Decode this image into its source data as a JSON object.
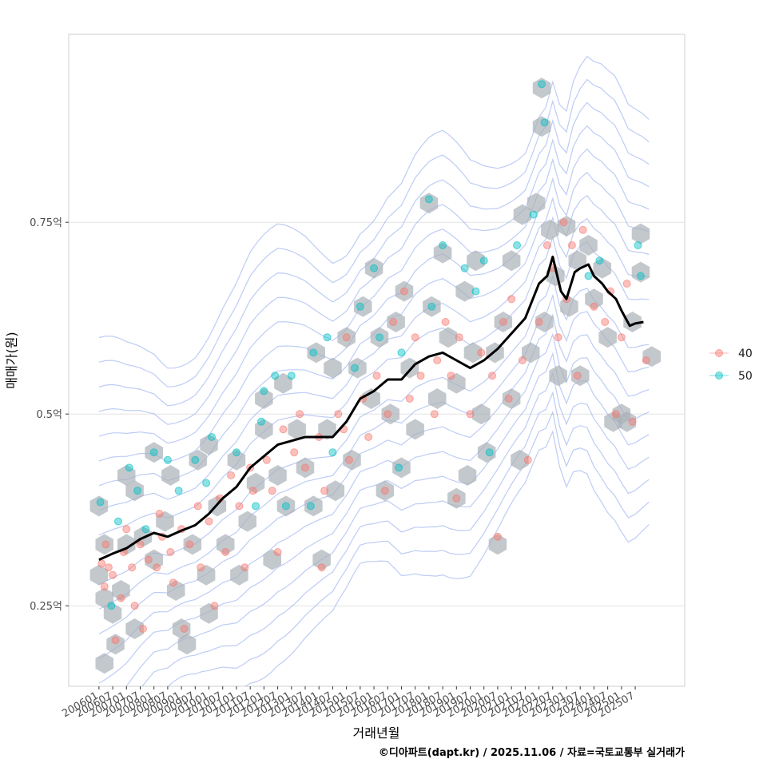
{
  "chart_data": {
    "type": "scatter",
    "title": "",
    "xlabel": "거래년월",
    "ylabel": "매매가(원)",
    "caption": "©디아파트(dapt.kr) / 2025.11.06 / 자료=국토교통부 실거래가",
    "x_tick_labels": [
      "200601",
      "200607",
      "200701",
      "200707",
      "200801",
      "200807",
      "200901",
      "200907",
      "201001",
      "201007",
      "201101",
      "201107",
      "201201",
      "201207",
      "201301",
      "201307",
      "201401",
      "201407",
      "201501",
      "201507",
      "201601",
      "201607",
      "201701",
      "201707",
      "201801",
      "201807",
      "201901",
      "201907",
      "202001",
      "202007",
      "202101",
      "202107",
      "202201",
      "202207",
      "202301",
      "202307",
      "202401",
      "202407",
      "202501",
      "202507"
    ],
    "y_ticks": [
      {
        "value": 0.25,
        "label": "0.25억"
      },
      {
        "value": 0.5,
        "label": "0.5억"
      },
      {
        "value": 0.75,
        "label": "0.75억"
      }
    ],
    "xlim": [
      2004.9,
      2027.3
    ],
    "ylim": [
      0.145,
      0.995
    ],
    "grid": true,
    "legend_position": "right",
    "series": [
      {
        "name": "40",
        "color": "#F8766D"
      },
      {
        "name": "50",
        "color": "#00BFC4"
      }
    ],
    "trend_color": "#000000",
    "hex_color": "#A9B0B8",
    "contour_color": "#6F8FE8",
    "trend": {
      "x": [
        2006.0,
        2006.5,
        2007.0,
        2007.5,
        2008.0,
        2008.5,
        2009.0,
        2009.5,
        2010.0,
        2010.5,
        2011.0,
        2011.5,
        2012.0,
        2012.5,
        2013.0,
        2013.5,
        2014.0,
        2014.5,
        2015.0,
        2015.5,
        2016.0,
        2016.5,
        2017.0,
        2017.5,
        2018.0,
        2018.5,
        2019.0,
        2019.5,
        2020.0,
        2020.5,
        2021.0,
        2021.5,
        2022.0,
        2022.3,
        2022.5,
        2022.8,
        2023.0,
        2023.3,
        2023.5,
        2023.8,
        2024.0,
        2024.3,
        2024.5,
        2024.8,
        2025.0,
        2025.3,
        2025.5,
        2025.8
      ],
      "y": [
        0.31,
        0.318,
        0.325,
        0.337,
        0.345,
        0.34,
        0.348,
        0.355,
        0.37,
        0.39,
        0.405,
        0.43,
        0.445,
        0.46,
        0.465,
        0.47,
        0.47,
        0.47,
        0.49,
        0.52,
        0.53,
        0.545,
        0.545,
        0.565,
        0.575,
        0.58,
        0.57,
        0.56,
        0.57,
        0.585,
        0.605,
        0.625,
        0.67,
        0.68,
        0.705,
        0.66,
        0.65,
        0.685,
        0.69,
        0.695,
        0.68,
        0.67,
        0.66,
        0.65,
        0.635,
        0.615,
        0.618,
        0.62
      ]
    },
    "points": [
      {
        "x": 2006.05,
        "y": 0.385,
        "s": "50"
      },
      {
        "x": 2006.1,
        "y": 0.305,
        "s": "40"
      },
      {
        "x": 2006.2,
        "y": 0.275,
        "s": "40"
      },
      {
        "x": 2006.25,
        "y": 0.33,
        "s": "40"
      },
      {
        "x": 2006.35,
        "y": 0.3,
        "s": "40"
      },
      {
        "x": 2006.45,
        "y": 0.25,
        "s": "50"
      },
      {
        "x": 2006.5,
        "y": 0.29,
        "s": "40"
      },
      {
        "x": 2006.6,
        "y": 0.205,
        "s": "40"
      },
      {
        "x": 2006.7,
        "y": 0.36,
        "s": "50"
      },
      {
        "x": 2006.8,
        "y": 0.26,
        "s": "40"
      },
      {
        "x": 2006.9,
        "y": 0.32,
        "s": "40"
      },
      {
        "x": 2007.0,
        "y": 0.35,
        "s": "40"
      },
      {
        "x": 2007.1,
        "y": 0.43,
        "s": "50"
      },
      {
        "x": 2007.2,
        "y": 0.3,
        "s": "40"
      },
      {
        "x": 2007.3,
        "y": 0.25,
        "s": "40"
      },
      {
        "x": 2007.4,
        "y": 0.4,
        "s": "50"
      },
      {
        "x": 2007.5,
        "y": 0.33,
        "s": "40"
      },
      {
        "x": 2007.6,
        "y": 0.22,
        "s": "40"
      },
      {
        "x": 2007.7,
        "y": 0.35,
        "s": "50"
      },
      {
        "x": 2007.8,
        "y": 0.31,
        "s": "40"
      },
      {
        "x": 2008.0,
        "y": 0.45,
        "s": "50"
      },
      {
        "x": 2008.1,
        "y": 0.3,
        "s": "40"
      },
      {
        "x": 2008.2,
        "y": 0.37,
        "s": "40"
      },
      {
        "x": 2008.3,
        "y": 0.34,
        "s": "40"
      },
      {
        "x": 2008.5,
        "y": 0.44,
        "s": "50"
      },
      {
        "x": 2008.6,
        "y": 0.32,
        "s": "40"
      },
      {
        "x": 2008.7,
        "y": 0.28,
        "s": "40"
      },
      {
        "x": 2008.9,
        "y": 0.4,
        "s": "50"
      },
      {
        "x": 2009.0,
        "y": 0.35,
        "s": "40"
      },
      {
        "x": 2009.1,
        "y": 0.22,
        "s": "40"
      },
      {
        "x": 2009.3,
        "y": 0.33,
        "s": "40"
      },
      {
        "x": 2009.5,
        "y": 0.44,
        "s": "50"
      },
      {
        "x": 2009.6,
        "y": 0.38,
        "s": "40"
      },
      {
        "x": 2009.7,
        "y": 0.3,
        "s": "40"
      },
      {
        "x": 2009.9,
        "y": 0.41,
        "s": "50"
      },
      {
        "x": 2010.0,
        "y": 0.36,
        "s": "40"
      },
      {
        "x": 2010.1,
        "y": 0.47,
        "s": "50"
      },
      {
        "x": 2010.2,
        "y": 0.25,
        "s": "40"
      },
      {
        "x": 2010.4,
        "y": 0.39,
        "s": "40"
      },
      {
        "x": 2010.6,
        "y": 0.32,
        "s": "40"
      },
      {
        "x": 2010.8,
        "y": 0.42,
        "s": "40"
      },
      {
        "x": 2011.0,
        "y": 0.45,
        "s": "50"
      },
      {
        "x": 2011.1,
        "y": 0.38,
        "s": "40"
      },
      {
        "x": 2011.3,
        "y": 0.3,
        "s": "40"
      },
      {
        "x": 2011.5,
        "y": 0.43,
        "s": "40"
      },
      {
        "x": 2011.6,
        "y": 0.4,
        "s": "40"
      },
      {
        "x": 2011.7,
        "y": 0.38,
        "s": "50"
      },
      {
        "x": 2011.9,
        "y": 0.49,
        "s": "50"
      },
      {
        "x": 2012.0,
        "y": 0.53,
        "s": "50"
      },
      {
        "x": 2012.1,
        "y": 0.44,
        "s": "40"
      },
      {
        "x": 2012.3,
        "y": 0.4,
        "s": "40"
      },
      {
        "x": 2012.4,
        "y": 0.55,
        "s": "50"
      },
      {
        "x": 2012.5,
        "y": 0.32,
        "s": "40"
      },
      {
        "x": 2012.7,
        "y": 0.48,
        "s": "40"
      },
      {
        "x": 2012.8,
        "y": 0.38,
        "s": "50"
      },
      {
        "x": 2013.0,
        "y": 0.55,
        "s": "50"
      },
      {
        "x": 2013.1,
        "y": 0.45,
        "s": "40"
      },
      {
        "x": 2013.3,
        "y": 0.5,
        "s": "40"
      },
      {
        "x": 2013.5,
        "y": 0.43,
        "s": "40"
      },
      {
        "x": 2013.7,
        "y": 0.38,
        "s": "50"
      },
      {
        "x": 2013.8,
        "y": 0.58,
        "s": "50"
      },
      {
        "x": 2014.0,
        "y": 0.47,
        "s": "40"
      },
      {
        "x": 2014.1,
        "y": 0.3,
        "s": "40"
      },
      {
        "x": 2014.2,
        "y": 0.4,
        "s": "40"
      },
      {
        "x": 2014.3,
        "y": 0.6,
        "s": "50"
      },
      {
        "x": 2014.5,
        "y": 0.45,
        "s": "50"
      },
      {
        "x": 2014.7,
        "y": 0.5,
        "s": "40"
      },
      {
        "x": 2014.9,
        "y": 0.48,
        "s": "40"
      },
      {
        "x": 2015.0,
        "y": 0.6,
        "s": "40"
      },
      {
        "x": 2015.1,
        "y": 0.44,
        "s": "40"
      },
      {
        "x": 2015.3,
        "y": 0.56,
        "s": "50"
      },
      {
        "x": 2015.5,
        "y": 0.64,
        "s": "50"
      },
      {
        "x": 2015.6,
        "y": 0.52,
        "s": "40"
      },
      {
        "x": 2015.8,
        "y": 0.47,
        "s": "40"
      },
      {
        "x": 2016.0,
        "y": 0.69,
        "s": "50"
      },
      {
        "x": 2016.1,
        "y": 0.55,
        "s": "40"
      },
      {
        "x": 2016.2,
        "y": 0.6,
        "s": "50"
      },
      {
        "x": 2016.4,
        "y": 0.4,
        "s": "40"
      },
      {
        "x": 2016.5,
        "y": 0.5,
        "s": "40"
      },
      {
        "x": 2016.7,
        "y": 0.62,
        "s": "40"
      },
      {
        "x": 2016.9,
        "y": 0.43,
        "s": "50"
      },
      {
        "x": 2017.0,
        "y": 0.58,
        "s": "50"
      },
      {
        "x": 2017.1,
        "y": 0.66,
        "s": "40"
      },
      {
        "x": 2017.3,
        "y": 0.52,
        "s": "40"
      },
      {
        "x": 2017.5,
        "y": 0.6,
        "s": "40"
      },
      {
        "x": 2017.7,
        "y": 0.55,
        "s": "40"
      },
      {
        "x": 2018.0,
        "y": 0.78,
        "s": "50"
      },
      {
        "x": 2018.1,
        "y": 0.64,
        "s": "50"
      },
      {
        "x": 2018.2,
        "y": 0.5,
        "s": "40"
      },
      {
        "x": 2018.3,
        "y": 0.57,
        "s": "40"
      },
      {
        "x": 2018.5,
        "y": 0.72,
        "s": "50"
      },
      {
        "x": 2018.6,
        "y": 0.62,
        "s": "40"
      },
      {
        "x": 2018.8,
        "y": 0.55,
        "s": "40"
      },
      {
        "x": 2019.0,
        "y": 0.39,
        "s": "40"
      },
      {
        "x": 2019.1,
        "y": 0.6,
        "s": "40"
      },
      {
        "x": 2019.3,
        "y": 0.69,
        "s": "50"
      },
      {
        "x": 2019.5,
        "y": 0.5,
        "s": "40"
      },
      {
        "x": 2019.7,
        "y": 0.66,
        "s": "50"
      },
      {
        "x": 2019.9,
        "y": 0.58,
        "s": "40"
      },
      {
        "x": 2020.0,
        "y": 0.7,
        "s": "50"
      },
      {
        "x": 2020.2,
        "y": 0.45,
        "s": "50"
      },
      {
        "x": 2020.3,
        "y": 0.55,
        "s": "40"
      },
      {
        "x": 2020.5,
        "y": 0.34,
        "s": "40"
      },
      {
        "x": 2020.7,
        "y": 0.62,
        "s": "40"
      },
      {
        "x": 2020.9,
        "y": 0.52,
        "s": "40"
      },
      {
        "x": 2021.0,
        "y": 0.65,
        "s": "40"
      },
      {
        "x": 2021.2,
        "y": 0.72,
        "s": "50"
      },
      {
        "x": 2021.4,
        "y": 0.57,
        "s": "40"
      },
      {
        "x": 2021.6,
        "y": 0.44,
        "s": "40"
      },
      {
        "x": 2021.8,
        "y": 0.76,
        "s": "50"
      },
      {
        "x": 2022.0,
        "y": 0.62,
        "s": "40"
      },
      {
        "x": 2022.1,
        "y": 0.93,
        "s": "50"
      },
      {
        "x": 2022.2,
        "y": 0.88,
        "s": "50"
      },
      {
        "x": 2022.3,
        "y": 0.72,
        "s": "40"
      },
      {
        "x": 2022.5,
        "y": 0.69,
        "s": "40"
      },
      {
        "x": 2022.7,
        "y": 0.6,
        "s": "40"
      },
      {
        "x": 2022.9,
        "y": 0.75,
        "s": "40"
      },
      {
        "x": 2023.0,
        "y": 0.65,
        "s": "40"
      },
      {
        "x": 2023.2,
        "y": 0.72,
        "s": "40"
      },
      {
        "x": 2023.4,
        "y": 0.55,
        "s": "40"
      },
      {
        "x": 2023.6,
        "y": 0.74,
        "s": "40"
      },
      {
        "x": 2023.8,
        "y": 0.68,
        "s": "50"
      },
      {
        "x": 2024.0,
        "y": 0.64,
        "s": "40"
      },
      {
        "x": 2024.2,
        "y": 0.7,
        "s": "50"
      },
      {
        "x": 2024.4,
        "y": 0.62,
        "s": "40"
      },
      {
        "x": 2024.6,
        "y": 0.66,
        "s": "40"
      },
      {
        "x": 2024.8,
        "y": 0.5,
        "s": "40"
      },
      {
        "x": 2025.0,
        "y": 0.6,
        "s": "40"
      },
      {
        "x": 2025.2,
        "y": 0.67,
        "s": "40"
      },
      {
        "x": 2025.4,
        "y": 0.49,
        "s": "40"
      },
      {
        "x": 2025.6,
        "y": 0.72,
        "s": "50"
      },
      {
        "x": 2025.7,
        "y": 0.68,
        "s": "50"
      },
      {
        "x": 2025.9,
        "y": 0.57,
        "s": "40"
      }
    ],
    "hexes": [
      {
        "x": 2006.0,
        "y": 0.38
      },
      {
        "x": 2006.0,
        "y": 0.29
      },
      {
        "x": 2006.2,
        "y": 0.33
      },
      {
        "x": 2006.2,
        "y": 0.26
      },
      {
        "x": 2006.2,
        "y": 0.175
      },
      {
        "x": 2006.5,
        "y": 0.24
      },
      {
        "x": 2006.6,
        "y": 0.2
      },
      {
        "x": 2006.8,
        "y": 0.27
      },
      {
        "x": 2007.0,
        "y": 0.33
      },
      {
        "x": 2007.0,
        "y": 0.42
      },
      {
        "x": 2007.3,
        "y": 0.4
      },
      {
        "x": 2007.3,
        "y": 0.22
      },
      {
        "x": 2007.6,
        "y": 0.34
      },
      {
        "x": 2008.0,
        "y": 0.45
      },
      {
        "x": 2008.0,
        "y": 0.31
      },
      {
        "x": 2008.4,
        "y": 0.36
      },
      {
        "x": 2008.6,
        "y": 0.42
      },
      {
        "x": 2008.8,
        "y": 0.27
      },
      {
        "x": 2009.0,
        "y": 0.22
      },
      {
        "x": 2009.2,
        "y": 0.2
      },
      {
        "x": 2009.4,
        "y": 0.33
      },
      {
        "x": 2009.6,
        "y": 0.44
      },
      {
        "x": 2009.9,
        "y": 0.29
      },
      {
        "x": 2010.0,
        "y": 0.46
      },
      {
        "x": 2010.0,
        "y": 0.24
      },
      {
        "x": 2010.3,
        "y": 0.38
      },
      {
        "x": 2010.6,
        "y": 0.33
      },
      {
        "x": 2011.0,
        "y": 0.44
      },
      {
        "x": 2011.1,
        "y": 0.29
      },
      {
        "x": 2011.4,
        "y": 0.36
      },
      {
        "x": 2011.7,
        "y": 0.41
      },
      {
        "x": 2012.0,
        "y": 0.52
      },
      {
        "x": 2012.0,
        "y": 0.48
      },
      {
        "x": 2012.3,
        "y": 0.31
      },
      {
        "x": 2012.5,
        "y": 0.42
      },
      {
        "x": 2012.7,
        "y": 0.54
      },
      {
        "x": 2012.8,
        "y": 0.38
      },
      {
        "x": 2013.2,
        "y": 0.48
      },
      {
        "x": 2013.5,
        "y": 0.43
      },
      {
        "x": 2013.8,
        "y": 0.38
      },
      {
        "x": 2013.9,
        "y": 0.58
      },
      {
        "x": 2014.1,
        "y": 0.31
      },
      {
        "x": 2014.3,
        "y": 0.48
      },
      {
        "x": 2014.5,
        "y": 0.56
      },
      {
        "x": 2014.6,
        "y": 0.4
      },
      {
        "x": 2015.0,
        "y": 0.6
      },
      {
        "x": 2015.2,
        "y": 0.44
      },
      {
        "x": 2015.4,
        "y": 0.56
      },
      {
        "x": 2015.6,
        "y": 0.64
      },
      {
        "x": 2015.9,
        "y": 0.52
      },
      {
        "x": 2016.0,
        "y": 0.69
      },
      {
        "x": 2016.2,
        "y": 0.6
      },
      {
        "x": 2016.4,
        "y": 0.4
      },
      {
        "x": 2016.6,
        "y": 0.5
      },
      {
        "x": 2016.8,
        "y": 0.62
      },
      {
        "x": 2017.0,
        "y": 0.43
      },
      {
        "x": 2017.1,
        "y": 0.66
      },
      {
        "x": 2017.3,
        "y": 0.56
      },
      {
        "x": 2017.5,
        "y": 0.48
      },
      {
        "x": 2018.0,
        "y": 0.775
      },
      {
        "x": 2018.1,
        "y": 0.64
      },
      {
        "x": 2018.3,
        "y": 0.52
      },
      {
        "x": 2018.5,
        "y": 0.71
      },
      {
        "x": 2018.7,
        "y": 0.6
      },
      {
        "x": 2019.0,
        "y": 0.39
      },
      {
        "x": 2019.0,
        "y": 0.54
      },
      {
        "x": 2019.3,
        "y": 0.66
      },
      {
        "x": 2019.4,
        "y": 0.42
      },
      {
        "x": 2019.6,
        "y": 0.58
      },
      {
        "x": 2019.7,
        "y": 0.7
      },
      {
        "x": 2019.9,
        "y": 0.5
      },
      {
        "x": 2020.1,
        "y": 0.45
      },
      {
        "x": 2020.4,
        "y": 0.58
      },
      {
        "x": 2020.5,
        "y": 0.33
      },
      {
        "x": 2020.7,
        "y": 0.62
      },
      {
        "x": 2021.0,
        "y": 0.52
      },
      {
        "x": 2021.0,
        "y": 0.7
      },
      {
        "x": 2021.3,
        "y": 0.44
      },
      {
        "x": 2021.4,
        "y": 0.76
      },
      {
        "x": 2021.7,
        "y": 0.58
      },
      {
        "x": 2021.9,
        "y": 0.775
      },
      {
        "x": 2022.1,
        "y": 0.925
      },
      {
        "x": 2022.1,
        "y": 0.875
      },
      {
        "x": 2022.2,
        "y": 0.62
      },
      {
        "x": 2022.4,
        "y": 0.74
      },
      {
        "x": 2022.6,
        "y": 0.68
      },
      {
        "x": 2022.7,
        "y": 0.55
      },
      {
        "x": 2023.0,
        "y": 0.745
      },
      {
        "x": 2023.1,
        "y": 0.64
      },
      {
        "x": 2023.4,
        "y": 0.7
      },
      {
        "x": 2023.5,
        "y": 0.55
      },
      {
        "x": 2023.8,
        "y": 0.72
      },
      {
        "x": 2024.0,
        "y": 0.65
      },
      {
        "x": 2024.3,
        "y": 0.69
      },
      {
        "x": 2024.5,
        "y": 0.6
      },
      {
        "x": 2024.7,
        "y": 0.49
      },
      {
        "x": 2025.0,
        "y": 0.5
      },
      {
        "x": 2025.2,
        "y": 0.49
      },
      {
        "x": 2025.4,
        "y": 0.62
      },
      {
        "x": 2025.7,
        "y": 0.735
      },
      {
        "x": 2025.7,
        "y": 0.685
      },
      {
        "x": 2026.1,
        "y": 0.575
      }
    ]
  }
}
